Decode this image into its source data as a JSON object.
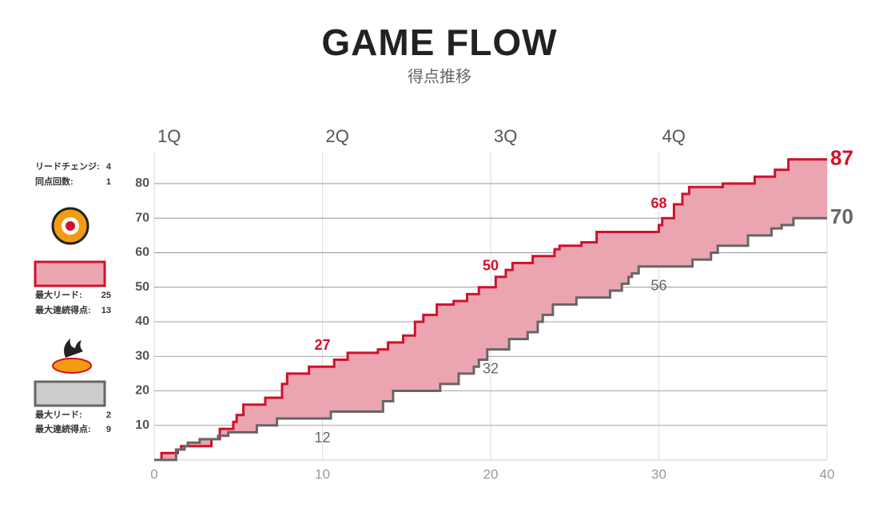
{
  "chart_data": {
    "type": "step",
    "title": "GAME FLOW",
    "subtitle": "得点推移",
    "quarters": [
      "1Q",
      "2Q",
      "3Q",
      "4Q"
    ],
    "xlim": [
      0,
      40
    ],
    "xticks": [
      0,
      10,
      20,
      30,
      40
    ],
    "ylim": [
      0,
      89
    ],
    "yticks": [
      10,
      20,
      30,
      40,
      50,
      60,
      70,
      80
    ],
    "grid": true,
    "fill_between": "#eba5b0",
    "series": [
      {
        "color": "#d0112b",
        "x": [
          0,
          0.43,
          1.4,
          1.6,
          3.4,
          3.9,
          4.7,
          4.9,
          5.3,
          6.6,
          7.6,
          7.9,
          9.2,
          10.7,
          11.5,
          13.3,
          13.9,
          14.8,
          15.5,
          16.0,
          16.8,
          17.8,
          18.6,
          19.3,
          20.3,
          20.9,
          21.3,
          22.5,
          23.8,
          24.1,
          25.4,
          26.3,
          30.0,
          30.2,
          30.9,
          31.4,
          31.8,
          33.8,
          35.7,
          36.9,
          37.7
        ],
        "values": [
          0,
          2,
          3,
          4,
          6,
          9,
          11,
          13,
          16,
          18,
          22,
          25,
          27,
          29,
          31,
          32,
          34,
          36,
          40,
          42,
          45,
          46,
          48,
          50,
          53,
          55,
          57,
          59,
          61,
          62,
          63,
          66,
          68,
          70,
          74,
          77,
          79,
          80,
          82,
          84,
          87
        ],
        "labels": [
          {
            "x": 10,
            "value": 27
          },
          {
            "x": 20,
            "value": 50
          },
          {
            "x": 30,
            "value": 68
          }
        ],
        "end_label": 87
      },
      {
        "color": "#666666",
        "x": [
          0,
          1.3,
          1.8,
          2.0,
          2.7,
          3.8,
          4.4,
          6.1,
          7.3,
          10.5,
          13.6,
          14.2,
          17.0,
          18.1,
          19.0,
          19.3,
          19.8,
          21.1,
          22.2,
          22.8,
          23.1,
          23.7,
          25.1,
          27.1,
          27.8,
          28.2,
          28.4,
          28.8,
          32.0,
          33.1,
          33.5,
          35.3,
          36.7,
          37.3,
          38.0
        ],
        "values": [
          0,
          3,
          4,
          5,
          6,
          7,
          8,
          10,
          12,
          14,
          17,
          20,
          22,
          25,
          27,
          29,
          32,
          35,
          37,
          40,
          42,
          45,
          47,
          49,
          51,
          53,
          54,
          56,
          58,
          60,
          62,
          65,
          67,
          68,
          70
        ],
        "labels": [
          {
            "x": 10,
            "value": 12
          },
          {
            "x": 20,
            "value": 32
          },
          {
            "x": 30,
            "value": 56
          }
        ],
        "end_label": 70
      }
    ]
  },
  "summary": {
    "lead_changes_label": "リードチェンジ:",
    "lead_changes": 4,
    "ties_label": "同点回数:",
    "ties": 1
  },
  "teams": [
    {
      "max_lead_label": "最大リード:",
      "max_lead": 25,
      "max_run_label": "最大連続得点:",
      "max_run": 13
    },
    {
      "max_lead_label": "最大リード:",
      "max_lead": 2,
      "max_run_label": "最大連続得点:",
      "max_run": 9
    }
  ]
}
